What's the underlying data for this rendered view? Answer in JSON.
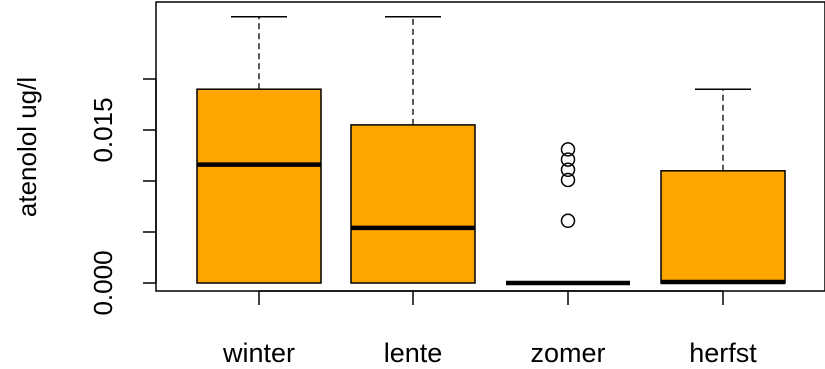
{
  "chart_data": {
    "type": "boxplot",
    "ylabel": "atenolol ug/l",
    "ylim": [
      -0.001,
      0.0245
    ],
    "yticks": [
      0.0,
      0.005,
      0.01,
      0.015,
      0.02
    ],
    "ytick_labels": [
      "0.000",
      "",
      "",
      "0.015",
      ""
    ],
    "box_color": "#FFA500",
    "categories": [
      "winter",
      "lente",
      "zomer",
      "herfst"
    ],
    "boxes": [
      {
        "category": "winter",
        "whisker_low": 0.0,
        "q1": 0.0,
        "median": 0.0116,
        "q3": 0.019,
        "whisker_high": 0.0261,
        "outliers": []
      },
      {
        "category": "lente",
        "whisker_low": 0.0,
        "q1": 0.0,
        "median": 0.0054,
        "q3": 0.0155,
        "whisker_high": 0.0261,
        "outliers": []
      },
      {
        "category": "zomer",
        "whisker_low": 0.0,
        "q1": 0.0,
        "median": 0.0,
        "q3": 0.0,
        "whisker_high": 0.0,
        "outliers": [
          0.0061,
          0.0101,
          0.0111,
          0.0121,
          0.0131
        ]
      },
      {
        "category": "herfst",
        "whisker_low": 0.0,
        "q1": 0.0,
        "median": 0.0001,
        "q3": 0.011,
        "whisker_high": 0.019,
        "outliers": []
      }
    ]
  }
}
